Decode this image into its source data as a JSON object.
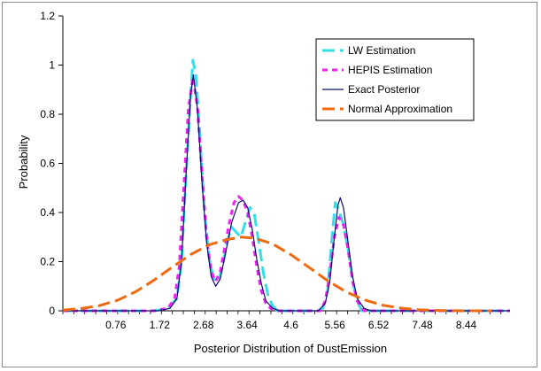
{
  "chart_data": {
    "type": "line",
    "title": "",
    "xlabel": "Posterior Distribution of DustEmission",
    "ylabel": "Probability",
    "xlim": [
      -0.4,
      9.4
    ],
    "ylim": [
      0,
      1.2
    ],
    "y_ticks": [
      "0",
      "0.2",
      "0.4",
      "0.6",
      "0.8",
      "1",
      "1.2"
    ],
    "y_tick_values": [
      0,
      0.2,
      0.4,
      0.6,
      0.8,
      1.0,
      1.2
    ],
    "x_ticks": [
      "0.76",
      "1.72",
      "2.68",
      "3.64",
      "4.6",
      "5.56",
      "6.52",
      "7.48",
      "8.44"
    ],
    "x_tick_values": [
      0.76,
      1.72,
      2.68,
      3.64,
      4.6,
      5.56,
      6.52,
      7.48,
      8.44
    ],
    "grid": false,
    "legend_position": "top-right",
    "series": [
      {
        "name": "LW Estimation",
        "color": "#33e0e8",
        "dash": "long-dash",
        "points": [
          [
            -0.4,
            0
          ],
          [
            1.6,
            0
          ],
          [
            1.9,
            0.01
          ],
          [
            2.1,
            0.05
          ],
          [
            2.2,
            0.2
          ],
          [
            2.3,
            0.55
          ],
          [
            2.4,
            0.88
          ],
          [
            2.45,
            1.02
          ],
          [
            2.52,
            0.95
          ],
          [
            2.6,
            0.72
          ],
          [
            2.7,
            0.42
          ],
          [
            2.8,
            0.22
          ],
          [
            2.9,
            0.13
          ],
          [
            3.0,
            0.12
          ],
          [
            3.1,
            0.18
          ],
          [
            3.2,
            0.28
          ],
          [
            3.3,
            0.34
          ],
          [
            3.4,
            0.32
          ],
          [
            3.5,
            0.3
          ],
          [
            3.6,
            0.36
          ],
          [
            3.7,
            0.42
          ],
          [
            3.8,
            0.39
          ],
          [
            3.9,
            0.27
          ],
          [
            4.0,
            0.15
          ],
          [
            4.1,
            0.06
          ],
          [
            4.2,
            0.02
          ],
          [
            4.3,
            0
          ],
          [
            5.2,
            0
          ],
          [
            5.3,
            0.01
          ],
          [
            5.4,
            0.08
          ],
          [
            5.5,
            0.3
          ],
          [
            5.57,
            0.44
          ],
          [
            5.63,
            0.42
          ],
          [
            5.75,
            0.35
          ],
          [
            5.85,
            0.25
          ],
          [
            5.95,
            0.12
          ],
          [
            6.05,
            0.04
          ],
          [
            6.15,
            0
          ],
          [
            9.4,
            0
          ]
        ]
      },
      {
        "name": "HEPIS Estimation",
        "color": "#ee22ee",
        "dash": "short-dash",
        "points": [
          [
            -0.4,
            0
          ],
          [
            1.6,
            0
          ],
          [
            1.9,
            0.01
          ],
          [
            2.05,
            0.05
          ],
          [
            2.15,
            0.18
          ],
          [
            2.25,
            0.5
          ],
          [
            2.35,
            0.82
          ],
          [
            2.45,
            0.95
          ],
          [
            2.55,
            0.83
          ],
          [
            2.65,
            0.55
          ],
          [
            2.75,
            0.3
          ],
          [
            2.85,
            0.16
          ],
          [
            2.95,
            0.12
          ],
          [
            3.05,
            0.16
          ],
          [
            3.15,
            0.26
          ],
          [
            3.25,
            0.36
          ],
          [
            3.35,
            0.44
          ],
          [
            3.45,
            0.465
          ],
          [
            3.55,
            0.45
          ],
          [
            3.65,
            0.4
          ],
          [
            3.75,
            0.3
          ],
          [
            3.85,
            0.18
          ],
          [
            3.95,
            0.08
          ],
          [
            4.05,
            0.03
          ],
          [
            4.15,
            0.01
          ],
          [
            4.3,
            0
          ],
          [
            5.25,
            0
          ],
          [
            5.35,
            0.04
          ],
          [
            5.45,
            0.15
          ],
          [
            5.55,
            0.3
          ],
          [
            5.65,
            0.38
          ],
          [
            5.75,
            0.35
          ],
          [
            5.85,
            0.25
          ],
          [
            5.95,
            0.12
          ],
          [
            6.05,
            0.04
          ],
          [
            6.2,
            0
          ],
          [
            9.4,
            0
          ]
        ]
      },
      {
        "name": "Exact Posterior",
        "color": "#0a0a6a",
        "dash": "solid",
        "points": [
          [
            -0.4,
            0
          ],
          [
            1.7,
            0
          ],
          [
            1.95,
            0.01
          ],
          [
            2.1,
            0.05
          ],
          [
            2.2,
            0.2
          ],
          [
            2.3,
            0.55
          ],
          [
            2.4,
            0.88
          ],
          [
            2.46,
            0.96
          ],
          [
            2.55,
            0.82
          ],
          [
            2.65,
            0.52
          ],
          [
            2.75,
            0.28
          ],
          [
            2.85,
            0.14
          ],
          [
            2.95,
            0.1
          ],
          [
            3.05,
            0.13
          ],
          [
            3.15,
            0.22
          ],
          [
            3.3,
            0.36
          ],
          [
            3.45,
            0.44
          ],
          [
            3.55,
            0.45
          ],
          [
            3.65,
            0.42
          ],
          [
            3.75,
            0.33
          ],
          [
            3.85,
            0.21
          ],
          [
            3.95,
            0.11
          ],
          [
            4.05,
            0.04
          ],
          [
            4.2,
            0.01
          ],
          [
            4.35,
            0
          ],
          [
            5.2,
            0
          ],
          [
            5.35,
            0.03
          ],
          [
            5.45,
            0.12
          ],
          [
            5.55,
            0.3
          ],
          [
            5.63,
            0.43
          ],
          [
            5.68,
            0.46
          ],
          [
            5.75,
            0.42
          ],
          [
            5.85,
            0.28
          ],
          [
            5.95,
            0.14
          ],
          [
            6.05,
            0.05
          ],
          [
            6.2,
            0.01
          ],
          [
            6.35,
            0
          ],
          [
            9.4,
            0
          ]
        ]
      },
      {
        "name": "Normal Approximation",
        "color": "#ee6a10",
        "dash": "long-dash",
        "points": [
          [
            -0.4,
            0.003
          ],
          [
            0.0,
            0.009
          ],
          [
            0.4,
            0.021
          ],
          [
            0.8,
            0.043
          ],
          [
            1.2,
            0.078
          ],
          [
            1.6,
            0.125
          ],
          [
            2.0,
            0.178
          ],
          [
            2.4,
            0.229
          ],
          [
            2.8,
            0.268
          ],
          [
            3.2,
            0.29
          ],
          [
            3.5,
            0.3
          ],
          [
            3.8,
            0.296
          ],
          [
            4.2,
            0.272
          ],
          [
            4.6,
            0.228
          ],
          [
            5.0,
            0.176
          ],
          [
            5.4,
            0.123
          ],
          [
            5.8,
            0.078
          ],
          [
            6.2,
            0.045
          ],
          [
            6.6,
            0.023
          ],
          [
            7.0,
            0.011
          ],
          [
            7.4,
            0.004
          ],
          [
            7.8,
            0.0015
          ],
          [
            8.2,
            0.0005
          ],
          [
            8.6,
            0.0001
          ],
          [
            9.0,
            0
          ]
        ]
      }
    ]
  }
}
